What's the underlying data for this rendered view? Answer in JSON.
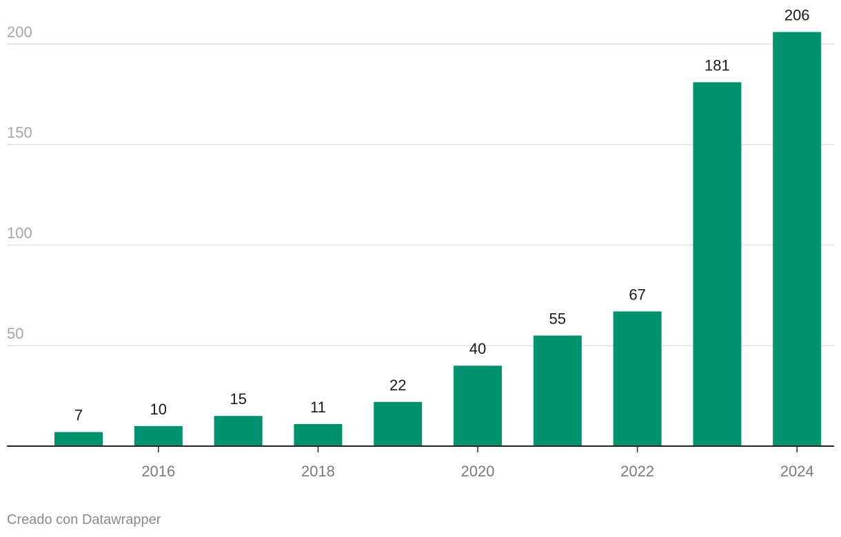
{
  "chart_data": {
    "type": "bar",
    "categories": [
      "2015",
      "2016",
      "2017",
      "2018",
      "2019",
      "2020",
      "2021",
      "2022",
      "2023",
      "2024"
    ],
    "values": [
      7,
      10,
      15,
      11,
      22,
      40,
      55,
      67,
      181,
      206
    ],
    "x_tick_labels": [
      "2016",
      "2018",
      "2020",
      "2022",
      "2024"
    ],
    "y_ticks": [
      50,
      100,
      150,
      200
    ],
    "ylim": [
      0,
      210
    ],
    "grid": true,
    "bar_color": "#00916e",
    "title": "",
    "xlabel": "",
    "ylabel": ""
  },
  "footer": {
    "credit": "Creado con Datawrapper"
  }
}
